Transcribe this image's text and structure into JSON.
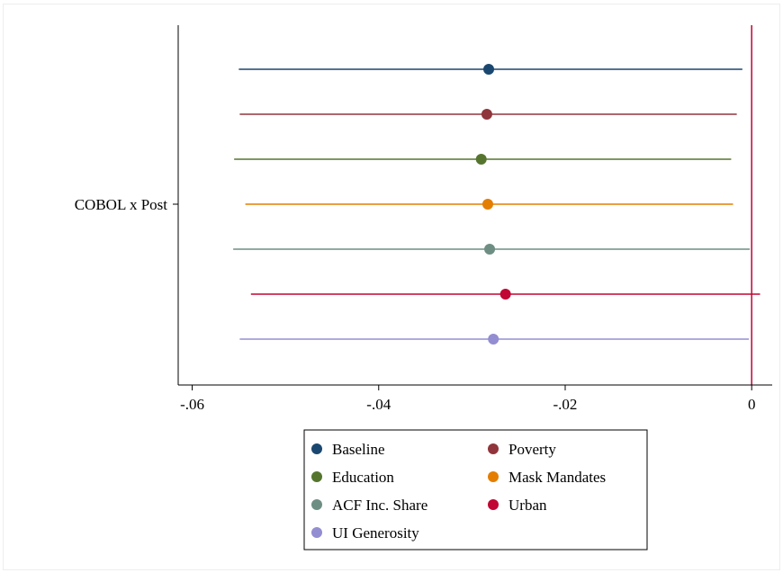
{
  "chart_data": {
    "type": "scatter",
    "subtype": "coefficient-plot",
    "title": "",
    "xlabel": "",
    "ylabel": "",
    "xlim": [
      -0.0615,
      0.0022
    ],
    "x_ticks": [
      -0.06,
      -0.04,
      -0.02,
      0
    ],
    "x_tick_labels": [
      "-.06",
      "-.04",
      "-.02",
      "0"
    ],
    "y_category": "COBOL x Post",
    "reference_line": {
      "x": 0,
      "color": "#c10534"
    },
    "grid": false,
    "legend": {
      "position": "bottom",
      "columns": 2
    },
    "series": [
      {
        "name": "Baseline",
        "color": "#1a476f",
        "estimate": -0.0282,
        "ci_low": -0.055,
        "ci_high": -0.001
      },
      {
        "name": "Poverty",
        "color": "#90353b",
        "estimate": -0.0284,
        "ci_low": -0.0549,
        "ci_high": -0.0016
      },
      {
        "name": "Education",
        "color": "#55752f",
        "estimate": -0.029,
        "ci_low": -0.0555,
        "ci_high": -0.0022
      },
      {
        "name": "Mask Mandates",
        "color": "#e37e00",
        "estimate": -0.0283,
        "ci_low": -0.0543,
        "ci_high": -0.002
      },
      {
        "name": "ACF Inc. Share",
        "color": "#6e8e84",
        "estimate": -0.0281,
        "ci_low": -0.0556,
        "ci_high": -0.0002
      },
      {
        "name": "Urban",
        "color": "#c10534",
        "estimate": -0.0264,
        "ci_low": -0.0537,
        "ci_high": 0.0009
      },
      {
        "name": "UI Generosity",
        "color": "#938dd2",
        "estimate": -0.0277,
        "ci_low": -0.0549,
        "ci_high": -0.0003
      }
    ]
  }
}
